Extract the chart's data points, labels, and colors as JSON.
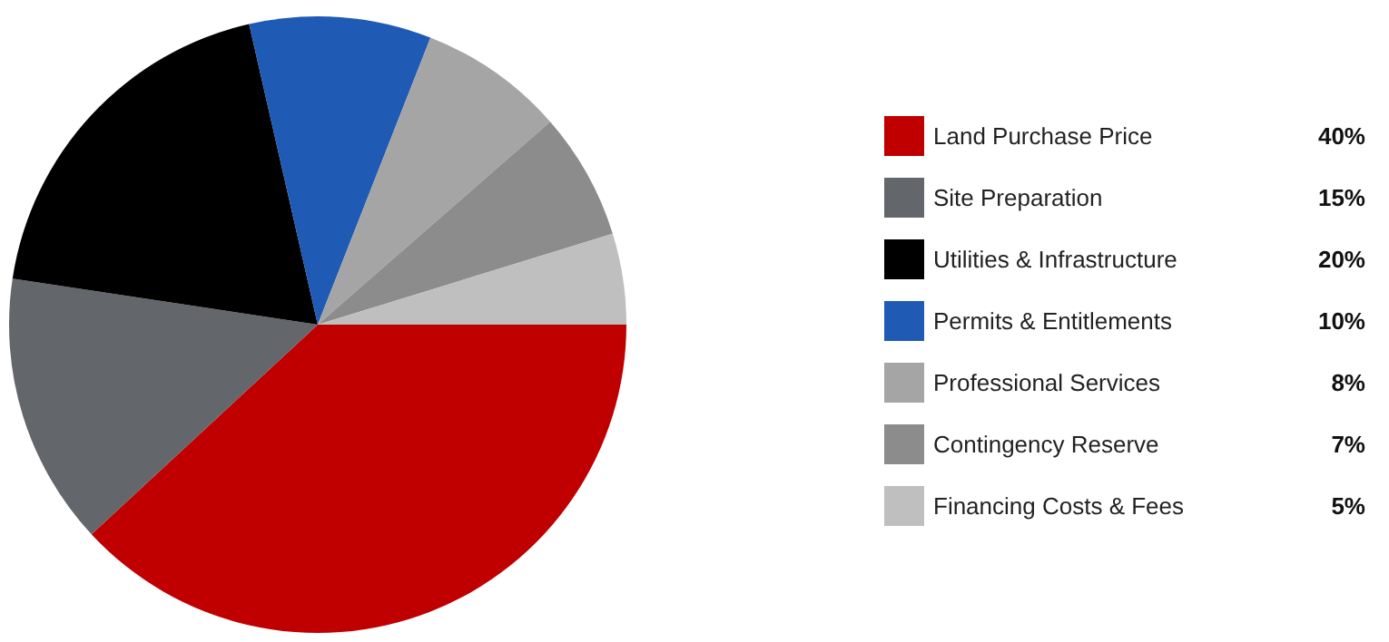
{
  "chart_data": {
    "type": "pie",
    "categories": [
      "Land Purchase Price",
      "Site Preparation",
      "Utilities & Infrastructure",
      "Permits & Entitlements",
      "Professional Services",
      "Contingency Reserve",
      "Financing Costs & Fees"
    ],
    "values": [
      40,
      15,
      20,
      10,
      8,
      7,
      5
    ],
    "value_labels": [
      "40%",
      "15%",
      "20%",
      "10%",
      "8%",
      "7%",
      "5%"
    ],
    "colors": [
      "#c00000",
      "#63666a",
      "#000000",
      "#1f5bb5",
      "#a5a5a5",
      "#8c8c8c",
      "#bfbfbf"
    ],
    "legend": "right"
  }
}
